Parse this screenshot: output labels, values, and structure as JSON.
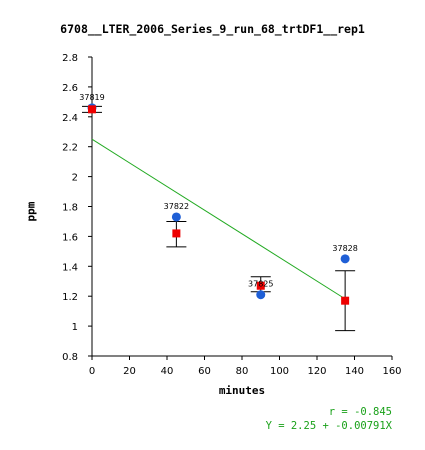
{
  "chart_data": {
    "type": "scatter",
    "title": "6708__LTER_2006_Series_9_run_68_trtDF1__rep1",
    "xlabel": "minutes",
    "ylabel": "ppm",
    "xlim": [
      0,
      160
    ],
    "ylim": [
      0.8,
      2.8
    ],
    "x_ticks": [
      "0",
      "20",
      "40",
      "60",
      "80",
      "100",
      "120",
      "140",
      "160"
    ],
    "y_ticks": [
      "0.8",
      "1",
      "1.2",
      "1.4",
      "1.6",
      "1.8",
      "2",
      "2.2",
      "2.4",
      "2.6",
      "2.8"
    ],
    "observations": [
      {
        "label": "37819",
        "x": 0,
        "y": 2.46
      },
      {
        "label": "37822",
        "x": 45,
        "y": 1.73
      },
      {
        "label": "37825",
        "x": 90,
        "y": 1.21
      },
      {
        "label": "37828",
        "x": 135,
        "y": 1.45
      }
    ],
    "means": [
      {
        "x": 0,
        "y": 2.45,
        "err_low": 2.43,
        "err_high": 2.47
      },
      {
        "x": 45,
        "y": 1.62,
        "err_low": 1.53,
        "err_high": 1.7
      },
      {
        "x": 90,
        "y": 1.27,
        "err_low": 1.23,
        "err_high": 1.33
      },
      {
        "x": 135,
        "y": 1.17,
        "err_low": 0.97,
        "err_high": 1.37
      }
    ],
    "fit": {
      "intercept": 2.25,
      "slope": -0.00791,
      "x_range": [
        0,
        135
      ]
    },
    "stats": {
      "r": "r = -0.845",
      "equation": "Y = 2.25 + -0.00791X"
    },
    "colors": {
      "observation": "#1f5fd6",
      "mean": "#ee0000",
      "fit": "#22aa22",
      "stats": "#1aa11a"
    }
  }
}
